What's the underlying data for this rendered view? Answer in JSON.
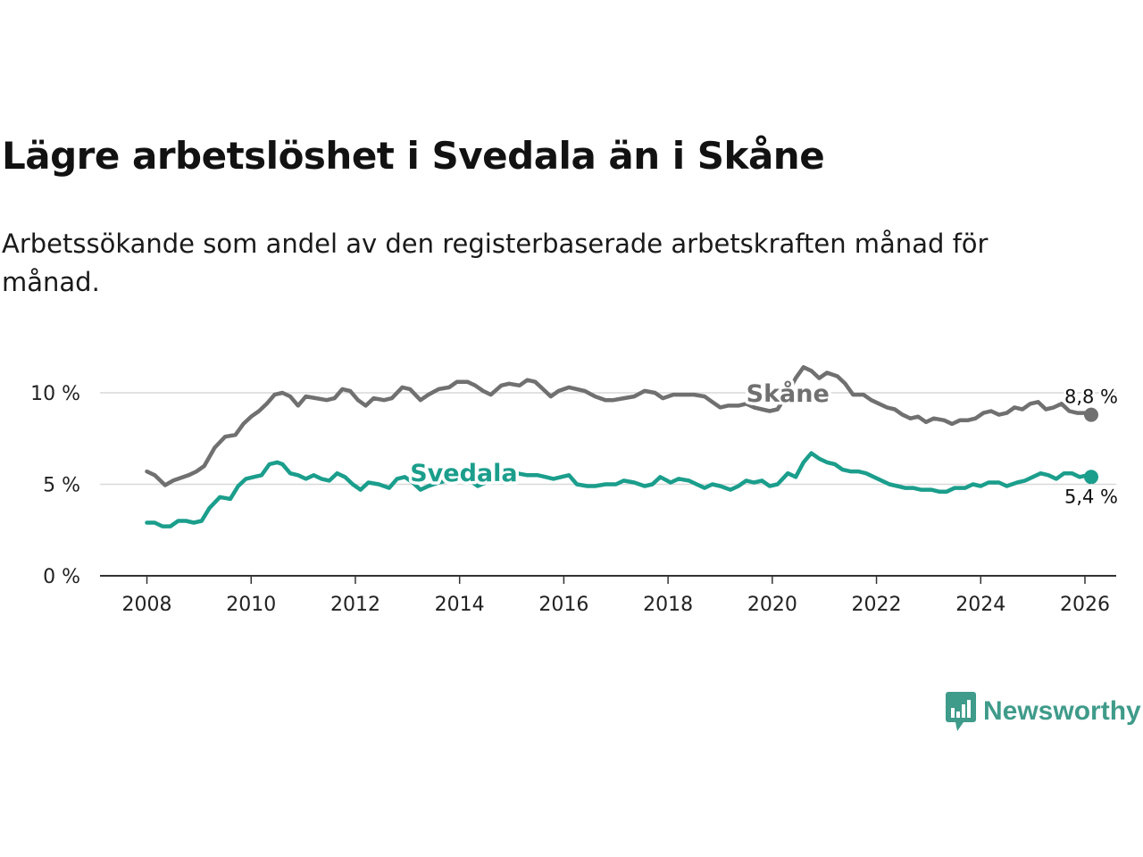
{
  "title": "Lägre arbetslöshet i Svedala än i Skåne",
  "subtitle": "Arbetssökande som andel av den registerbaserade arbetskraften månad för månad.",
  "brand": {
    "name": "Newsworthy",
    "icon": "newsworthy-logo-icon",
    "color": "#3f9b8a"
  },
  "chart_data": {
    "type": "line",
    "title": "Lägre arbetslöshet i Svedala än i Skåne",
    "xlabel": "",
    "ylabel": "",
    "x_range": [
      2007.1,
      2026.6
    ],
    "ylim": [
      0,
      10
    ],
    "y_ticks": [
      0,
      5,
      10
    ],
    "y_tick_labels": [
      "0 %",
      "5 %",
      "10 %"
    ],
    "x_ticks": [
      2008,
      2010,
      2012,
      2014,
      2016,
      2018,
      2020,
      2022,
      2024,
      2026
    ],
    "x_tick_labels": [
      "2008",
      "2010",
      "2012",
      "2014",
      "2016",
      "2018",
      "2020",
      "2022",
      "2024",
      "2026"
    ],
    "grid": "horizontal",
    "series": [
      {
        "name": "Skåne",
        "color": "#707070",
        "end_label": "8,8 %",
        "label_anchor": [
          2019.5,
          9.95
        ],
        "points": [
          [
            2008.0,
            5.7
          ],
          [
            2008.15,
            5.5
          ],
          [
            2008.35,
            4.95
          ],
          [
            2008.5,
            5.2
          ],
          [
            2008.8,
            5.5
          ],
          [
            2008.95,
            5.7
          ],
          [
            2009.1,
            6.0
          ],
          [
            2009.3,
            7.0
          ],
          [
            2009.5,
            7.6
          ],
          [
            2009.7,
            7.7
          ],
          [
            2009.85,
            8.3
          ],
          [
            2010.0,
            8.7
          ],
          [
            2010.15,
            9.0
          ],
          [
            2010.3,
            9.4
          ],
          [
            2010.45,
            9.9
          ],
          [
            2010.6,
            10.0
          ],
          [
            2010.75,
            9.8
          ],
          [
            2010.9,
            9.3
          ],
          [
            2011.05,
            9.8
          ],
          [
            2011.25,
            9.7
          ],
          [
            2011.45,
            9.6
          ],
          [
            2011.6,
            9.7
          ],
          [
            2011.75,
            10.2
          ],
          [
            2011.9,
            10.1
          ],
          [
            2012.05,
            9.6
          ],
          [
            2012.2,
            9.3
          ],
          [
            2012.35,
            9.7
          ],
          [
            2012.55,
            9.6
          ],
          [
            2012.7,
            9.7
          ],
          [
            2012.9,
            10.3
          ],
          [
            2013.05,
            10.2
          ],
          [
            2013.25,
            9.6
          ],
          [
            2013.4,
            9.9
          ],
          [
            2013.6,
            10.2
          ],
          [
            2013.8,
            10.3
          ],
          [
            2013.95,
            10.6
          ],
          [
            2014.15,
            10.6
          ],
          [
            2014.3,
            10.4
          ],
          [
            2014.45,
            10.1
          ],
          [
            2014.6,
            9.9
          ],
          [
            2014.8,
            10.4
          ],
          [
            2014.95,
            10.5
          ],
          [
            2015.15,
            10.4
          ],
          [
            2015.3,
            10.7
          ],
          [
            2015.45,
            10.6
          ],
          [
            2015.6,
            10.2
          ],
          [
            2015.75,
            9.8
          ],
          [
            2015.9,
            10.1
          ],
          [
            2016.1,
            10.3
          ],
          [
            2016.25,
            10.2
          ],
          [
            2016.4,
            10.1
          ],
          [
            2016.6,
            9.8
          ],
          [
            2016.8,
            9.6
          ],
          [
            2016.95,
            9.6
          ],
          [
            2017.15,
            9.7
          ],
          [
            2017.35,
            9.8
          ],
          [
            2017.55,
            10.1
          ],
          [
            2017.75,
            10.0
          ],
          [
            2017.9,
            9.7
          ],
          [
            2018.1,
            9.9
          ],
          [
            2018.3,
            9.9
          ],
          [
            2018.5,
            9.9
          ],
          [
            2018.7,
            9.8
          ],
          [
            2018.85,
            9.5
          ],
          [
            2019.0,
            9.2
          ],
          [
            2019.15,
            9.3
          ],
          [
            2019.35,
            9.3
          ],
          [
            2019.5,
            9.4
          ],
          [
            2019.65,
            9.2
          ],
          [
            2019.8,
            9.1
          ],
          [
            2019.95,
            9.0
          ],
          [
            2020.1,
            9.1
          ],
          [
            2020.3,
            10.0
          ],
          [
            2020.45,
            10.8
          ],
          [
            2020.6,
            11.4
          ],
          [
            2020.75,
            11.2
          ],
          [
            2020.9,
            10.8
          ],
          [
            2021.05,
            11.1
          ],
          [
            2021.25,
            10.9
          ],
          [
            2021.4,
            10.5
          ],
          [
            2021.55,
            9.9
          ],
          [
            2021.75,
            9.9
          ],
          [
            2021.9,
            9.6
          ],
          [
            2022.05,
            9.4
          ],
          [
            2022.2,
            9.2
          ],
          [
            2022.35,
            9.1
          ],
          [
            2022.5,
            8.8
          ],
          [
            2022.65,
            8.6
          ],
          [
            2022.8,
            8.7
          ],
          [
            2022.95,
            8.4
          ],
          [
            2023.1,
            8.6
          ],
          [
            2023.3,
            8.5
          ],
          [
            2023.45,
            8.3
          ],
          [
            2023.6,
            8.5
          ],
          [
            2023.75,
            8.5
          ],
          [
            2023.9,
            8.6
          ],
          [
            2024.05,
            8.9
          ],
          [
            2024.2,
            9.0
          ],
          [
            2024.35,
            8.8
          ],
          [
            2024.5,
            8.9
          ],
          [
            2024.65,
            9.2
          ],
          [
            2024.8,
            9.1
          ],
          [
            2024.95,
            9.4
          ],
          [
            2025.1,
            9.5
          ],
          [
            2025.25,
            9.1
          ],
          [
            2025.4,
            9.2
          ],
          [
            2025.55,
            9.4
          ],
          [
            2025.7,
            9.0
          ],
          [
            2025.85,
            8.9
          ],
          [
            2026.0,
            8.9
          ],
          [
            2026.12,
            8.8
          ]
        ]
      },
      {
        "name": "Svedala",
        "color": "#1b9e8c",
        "end_label": "5,4 %",
        "label_anchor": [
          2013.05,
          5.6
        ],
        "points": [
          [
            2008.0,
            2.9
          ],
          [
            2008.15,
            2.9
          ],
          [
            2008.3,
            2.7
          ],
          [
            2008.45,
            2.7
          ],
          [
            2008.6,
            3.0
          ],
          [
            2008.75,
            3.0
          ],
          [
            2008.9,
            2.9
          ],
          [
            2009.05,
            3.0
          ],
          [
            2009.2,
            3.7
          ],
          [
            2009.4,
            4.3
          ],
          [
            2009.6,
            4.2
          ],
          [
            2009.75,
            4.9
          ],
          [
            2009.9,
            5.3
          ],
          [
            2010.05,
            5.4
          ],
          [
            2010.2,
            5.5
          ],
          [
            2010.35,
            6.1
          ],
          [
            2010.5,
            6.2
          ],
          [
            2010.6,
            6.1
          ],
          [
            2010.75,
            5.6
          ],
          [
            2010.9,
            5.5
          ],
          [
            2011.05,
            5.3
          ],
          [
            2011.2,
            5.5
          ],
          [
            2011.35,
            5.3
          ],
          [
            2011.5,
            5.2
          ],
          [
            2011.65,
            5.6
          ],
          [
            2011.8,
            5.4
          ],
          [
            2011.95,
            5.0
          ],
          [
            2012.1,
            4.7
          ],
          [
            2012.25,
            5.1
          ],
          [
            2012.45,
            5.0
          ],
          [
            2012.65,
            4.8
          ],
          [
            2012.8,
            5.3
          ],
          [
            2012.95,
            5.4
          ],
          [
            2013.1,
            5.1
          ],
          [
            2013.25,
            4.7
          ],
          [
            2013.4,
            4.9
          ],
          [
            2013.6,
            5.1
          ],
          [
            2013.75,
            5.2
          ],
          [
            2013.9,
            5.6
          ],
          [
            2014.05,
            5.4
          ],
          [
            2014.2,
            5.2
          ],
          [
            2014.35,
            4.9
          ],
          [
            2014.5,
            5.1
          ],
          [
            2014.7,
            5.3
          ],
          [
            2014.9,
            5.5
          ],
          [
            2015.1,
            5.6
          ],
          [
            2015.3,
            5.5
          ],
          [
            2015.5,
            5.5
          ],
          [
            2015.65,
            5.4
          ],
          [
            2015.8,
            5.3
          ],
          [
            2015.95,
            5.4
          ],
          [
            2016.1,
            5.5
          ],
          [
            2016.25,
            5.0
          ],
          [
            2016.45,
            4.9
          ],
          [
            2016.6,
            4.9
          ],
          [
            2016.8,
            5.0
          ],
          [
            2017.0,
            5.0
          ],
          [
            2017.15,
            5.2
          ],
          [
            2017.35,
            5.1
          ],
          [
            2017.55,
            4.9
          ],
          [
            2017.7,
            5.0
          ],
          [
            2017.85,
            5.4
          ],
          [
            2018.05,
            5.1
          ],
          [
            2018.2,
            5.3
          ],
          [
            2018.4,
            5.2
          ],
          [
            2018.55,
            5.0
          ],
          [
            2018.7,
            4.8
          ],
          [
            2018.85,
            5.0
          ],
          [
            2019.0,
            4.9
          ],
          [
            2019.2,
            4.7
          ],
          [
            2019.35,
            4.9
          ],
          [
            2019.5,
            5.2
          ],
          [
            2019.65,
            5.1
          ],
          [
            2019.8,
            5.2
          ],
          [
            2019.95,
            4.9
          ],
          [
            2020.1,
            5.0
          ],
          [
            2020.3,
            5.6
          ],
          [
            2020.45,
            5.4
          ],
          [
            2020.6,
            6.2
          ],
          [
            2020.75,
            6.7
          ],
          [
            2020.9,
            6.4
          ],
          [
            2021.05,
            6.2
          ],
          [
            2021.2,
            6.1
          ],
          [
            2021.35,
            5.8
          ],
          [
            2021.5,
            5.7
          ],
          [
            2021.65,
            5.7
          ],
          [
            2021.8,
            5.6
          ],
          [
            2021.95,
            5.4
          ],
          [
            2022.1,
            5.2
          ],
          [
            2022.25,
            5.0
          ],
          [
            2022.4,
            4.9
          ],
          [
            2022.55,
            4.8
          ],
          [
            2022.7,
            4.8
          ],
          [
            2022.85,
            4.7
          ],
          [
            2023.05,
            4.7
          ],
          [
            2023.2,
            4.6
          ],
          [
            2023.35,
            4.6
          ],
          [
            2023.5,
            4.8
          ],
          [
            2023.7,
            4.8
          ],
          [
            2023.85,
            5.0
          ],
          [
            2024.0,
            4.9
          ],
          [
            2024.15,
            5.1
          ],
          [
            2024.35,
            5.1
          ],
          [
            2024.5,
            4.9
          ],
          [
            2024.7,
            5.1
          ],
          [
            2024.85,
            5.2
          ],
          [
            2025.0,
            5.4
          ],
          [
            2025.15,
            5.6
          ],
          [
            2025.3,
            5.5
          ],
          [
            2025.45,
            5.3
          ],
          [
            2025.6,
            5.6
          ],
          [
            2025.75,
            5.6
          ],
          [
            2025.9,
            5.4
          ],
          [
            2026.05,
            5.5
          ],
          [
            2026.12,
            5.4
          ]
        ]
      }
    ]
  }
}
